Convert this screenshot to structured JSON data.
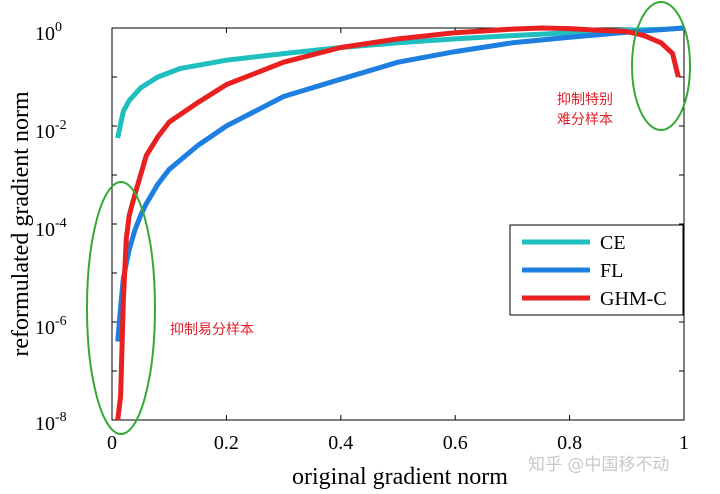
{
  "chart_data": {
    "type": "line",
    "title": "",
    "xlabel": "original gradient norm",
    "ylabel": "reformulated gradient norm",
    "xlim": [
      0,
      1
    ],
    "ylim_log10": [
      -8,
      0
    ],
    "x_ticks": [
      "0",
      "0.2",
      "0.4",
      "0.6",
      "0.8",
      "1"
    ],
    "y_ticks": [
      {
        "base": "10",
        "exp": "0"
      },
      {
        "base": "10",
        "exp": "-2"
      },
      {
        "base": "10",
        "exp": "-4"
      },
      {
        "base": "10",
        "exp": "-6"
      },
      {
        "base": "10",
        "exp": "-8"
      }
    ],
    "y_scale": "log",
    "legend_position": "lower-right",
    "series": [
      {
        "name": "CE",
        "color": "#1fbfbf",
        "x": [
          0.01,
          0.015,
          0.02,
          0.03,
          0.05,
          0.08,
          0.12,
          0.2,
          0.3,
          0.4,
          0.5,
          0.6,
          0.7,
          0.8,
          0.9,
          0.97,
          1.0
        ],
        "y": [
          0.0057,
          0.011,
          0.02,
          0.033,
          0.06,
          0.1,
          0.15,
          0.22,
          0.3,
          0.4,
          0.5,
          0.6,
          0.7,
          0.8,
          0.9,
          0.95,
          1.0
        ]
      },
      {
        "name": "FL",
        "color": "#1f7fe0",
        "x": [
          0.01,
          0.015,
          0.02,
          0.03,
          0.04,
          0.05,
          0.06,
          0.08,
          0.1,
          0.15,
          0.2,
          0.3,
          0.4,
          0.5,
          0.6,
          0.7,
          0.8,
          0.9,
          1.0
        ],
        "y": [
          4e-07,
          2e-06,
          8e-06,
          3e-05,
          7.5e-05,
          0.00015,
          0.00026,
          0.00065,
          0.0013,
          0.004,
          0.01,
          0.04,
          0.09,
          0.2,
          0.33,
          0.5,
          0.65,
          0.82,
          1.0
        ]
      },
      {
        "name": "GHM-C",
        "color": "#e82020",
        "x": [
          0.01,
          0.015,
          0.02,
          0.025,
          0.03,
          0.04,
          0.05,
          0.06,
          0.08,
          0.1,
          0.15,
          0.2,
          0.3,
          0.4,
          0.5,
          0.6,
          0.7,
          0.75,
          0.8,
          0.85,
          0.9,
          0.93,
          0.96,
          0.98,
          0.99
        ],
        "y": [
          1e-08,
          3e-08,
          3e-06,
          5e-05,
          0.00015,
          0.0004,
          0.001,
          0.0025,
          0.006,
          0.012,
          0.03,
          0.07,
          0.2,
          0.4,
          0.6,
          0.8,
          0.95,
          1.0,
          0.97,
          0.9,
          0.85,
          0.7,
          0.5,
          0.3,
          0.1
        ]
      }
    ],
    "annotations": [
      {
        "text": "抑制易分样本",
        "near": "low-gradient region"
      },
      {
        "text_lines": [
          "抑制特别",
          "难分样本"
        ],
        "near": "high-gradient region"
      }
    ]
  },
  "watermark": "知乎 @中国移不动"
}
